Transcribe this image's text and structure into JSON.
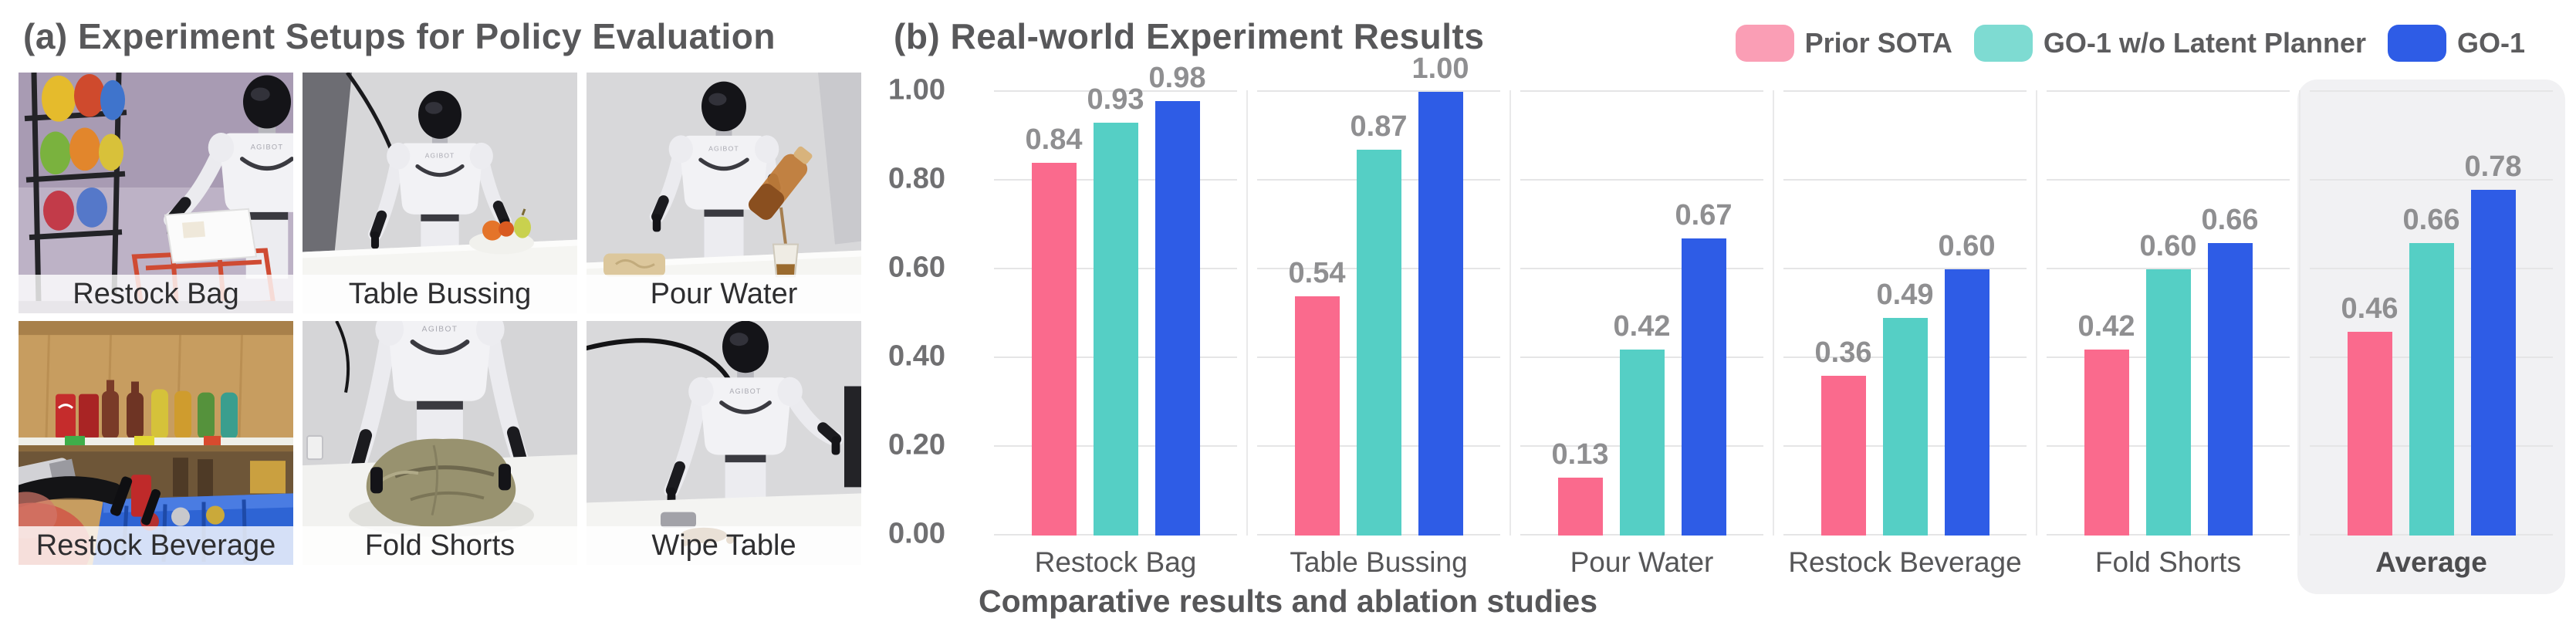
{
  "panel_a": {
    "title": "(a) Experiment Setups for Policy Evaluation",
    "robot_brand": "AGIBOT",
    "photos": [
      {
        "label": "Restock Bag",
        "scene": "restock-bag"
      },
      {
        "label": "Table Bussing",
        "scene": "table-bussing"
      },
      {
        "label": "Pour Water",
        "scene": "pour-water"
      },
      {
        "label": "Restock Beverage",
        "scene": "restock-beverage"
      },
      {
        "label": "Fold Shorts",
        "scene": "fold-shorts"
      },
      {
        "label": "Wipe Table",
        "scene": "wipe-table"
      }
    ]
  },
  "panel_b": {
    "title": "(b) Real-world Experiment Results",
    "legend": [
      {
        "label": "Prior SOTA",
        "swatch_color": "#FA9EB5",
        "bar_color": "#FA6A8D"
      },
      {
        "label": "GO-1 w/o Latent Planner",
        "swatch_color": "#7EDBD2",
        "bar_color": "#55CFC5"
      },
      {
        "label": "GO-1",
        "swatch_color": "#2E5CE6",
        "bar_color": "#2E5CE6"
      }
    ]
  },
  "chart_data": {
    "type": "bar",
    "title": "(b) Real-world Experiment Results",
    "categories": [
      "Restock Bag",
      "Table Bussing",
      "Pour Water",
      "Restock Beverage",
      "Fold Shorts",
      "Average"
    ],
    "series": [
      {
        "name": "Prior SOTA",
        "color": "#FA6A8D",
        "values": [
          0.84,
          0.54,
          0.13,
          0.36,
          0.42,
          0.46
        ]
      },
      {
        "name": "GO-1 w/o Latent Planner",
        "color": "#55CFC5",
        "values": [
          0.93,
          0.87,
          0.42,
          0.49,
          0.6,
          0.66
        ]
      },
      {
        "name": "GO-1",
        "color": "#2E5CE6",
        "values": [
          0.98,
          1.0,
          0.67,
          0.6,
          0.66,
          0.78
        ]
      }
    ],
    "xlabel": "",
    "ylabel": "",
    "ylim": [
      0,
      1.0
    ],
    "yticks": [
      "0.00",
      "0.20",
      "0.40",
      "0.60",
      "0.80",
      "1.00"
    ],
    "grid": true,
    "legend_position": "top-right",
    "highlight_category": "Average",
    "value_labels": true
  },
  "caption": "Comparative results and ablation studies"
}
